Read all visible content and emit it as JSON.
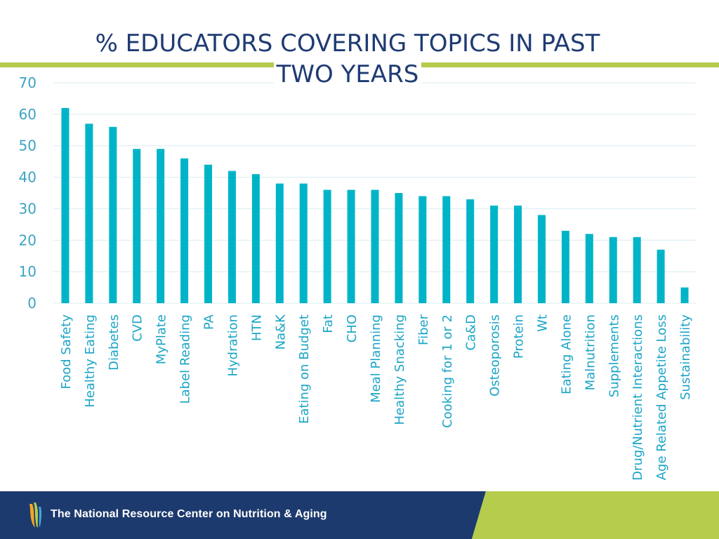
{
  "colors": {
    "bar": "#00b4c8",
    "accent_green": "#b5cc4d",
    "navy": "#1d3a6e",
    "axis_text": "#3aa3c4",
    "grid": "#d9ecf2",
    "category_text": "#1ba5c6"
  },
  "footer": {
    "org_name": "The National Resource Center on Nutrition & Aging",
    "logo_icon": "flame-logo-icon"
  },
  "chart_data": {
    "type": "bar",
    "title": "% EDUCATORS COVERING TOPICS IN PAST TWO YEARS",
    "title_lines": [
      "% EDUCATORS COVERING TOPICS IN PAST",
      "TWO YEARS"
    ],
    "xlabel": "",
    "ylabel": "",
    "ylim": [
      0,
      70
    ],
    "yticks": [
      0,
      10,
      20,
      30,
      40,
      50,
      60,
      70
    ],
    "grid": true,
    "legend": "none",
    "categories": [
      "Food Safety",
      "Healthy Eating",
      "Diabetes",
      "CVD",
      "MyPlate",
      "Label Reading",
      "PA",
      "Hydration",
      "HTN",
      "Na&K",
      "Eating on Budget",
      "Fat",
      "CHO",
      "Meal Planning",
      "Healthy Snacking",
      "Fiber",
      "Cooking for 1 or 2",
      "Ca&D",
      "Osteoporosis",
      "Protein",
      "Wt",
      "Eating Alone",
      "Malnutrition",
      "Supplements",
      "Drug/Nutrient Interactions",
      "Age Related Appetite Loss",
      "Sustainability"
    ],
    "values": [
      62,
      57,
      56,
      49,
      49,
      46,
      44,
      42,
      41,
      38,
      38,
      36,
      36,
      36,
      35,
      34,
      34,
      33,
      31,
      31,
      28,
      23,
      22,
      21,
      21,
      17,
      5
    ]
  }
}
